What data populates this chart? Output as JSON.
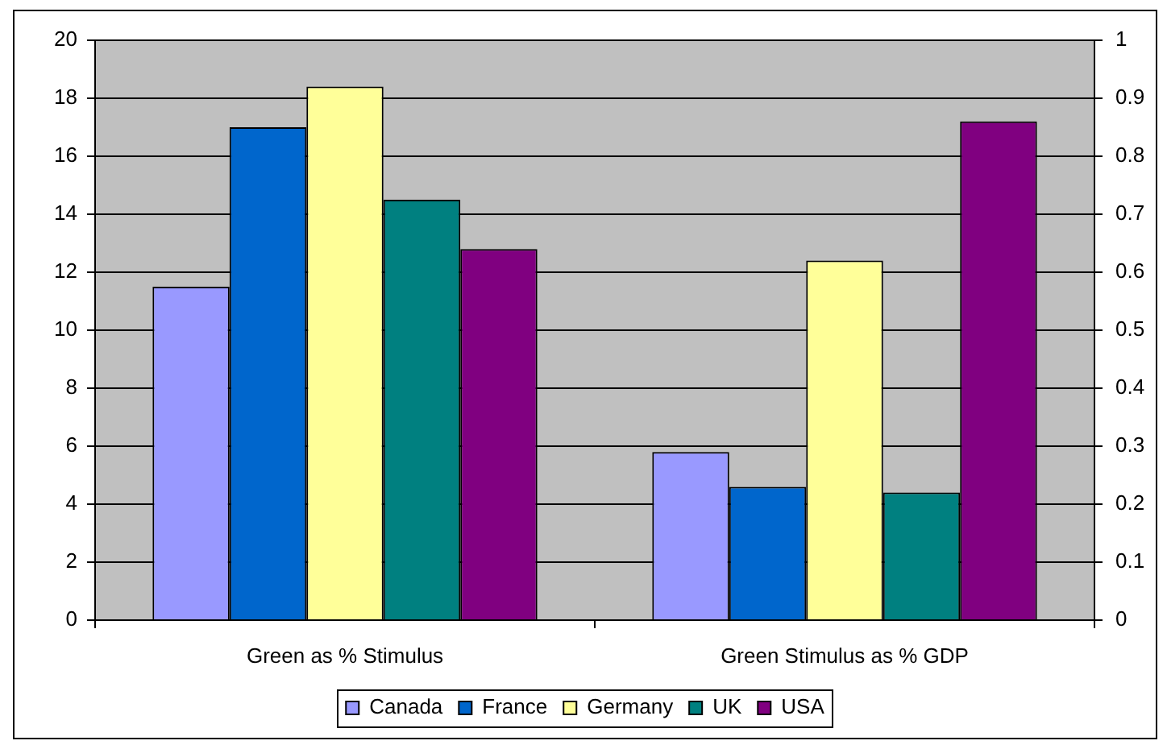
{
  "chart_data": {
    "type": "bar",
    "categories": [
      "Green as % Stimulus",
      "Green Stimulus as % GDP"
    ],
    "series": [
      {
        "name": "Canada",
        "color": "#9999ff",
        "values": [
          11.5,
          null
        ]
      },
      {
        "name": "France",
        "color": "#0066cc",
        "values": [
          17,
          null
        ]
      },
      {
        "name": "Germany",
        "color": "#ffff99",
        "values": [
          18.4,
          null
        ]
      },
      {
        "name": "UK",
        "color": "#008080",
        "values": [
          14.5,
          null
        ]
      },
      {
        "name": "USA",
        "color": "#800080",
        "values": [
          12.8,
          null
        ]
      },
      {
        "color": "#9999ff",
        "values": [
          null,
          0.29
        ],
        "axis": "y2"
      },
      {
        "color": "#0066cc",
        "values": [
          null,
          0.23
        ],
        "axis": "y2"
      },
      {
        "color": "#ffff99",
        "values": [
          null,
          0.62
        ],
        "axis": "y2"
      },
      {
        "color": "#008080",
        "values": [
          null,
          0.22
        ],
        "axis": "y2"
      },
      {
        "color": "#800080",
        "values": [
          null,
          0.86
        ],
        "axis": "y2"
      }
    ],
    "ylim": [
      0,
      20
    ],
    "yticks": [
      0,
      2,
      4,
      6,
      8,
      10,
      12,
      14,
      16,
      18,
      20
    ],
    "y2lim": [
      0,
      1
    ],
    "y2ticks": [
      0,
      0.1,
      0.2,
      0.3,
      0.4,
      0.5,
      0.6,
      0.7,
      0.8,
      0.9,
      1
    ],
    "grid": "y",
    "legend": "bottom"
  }
}
